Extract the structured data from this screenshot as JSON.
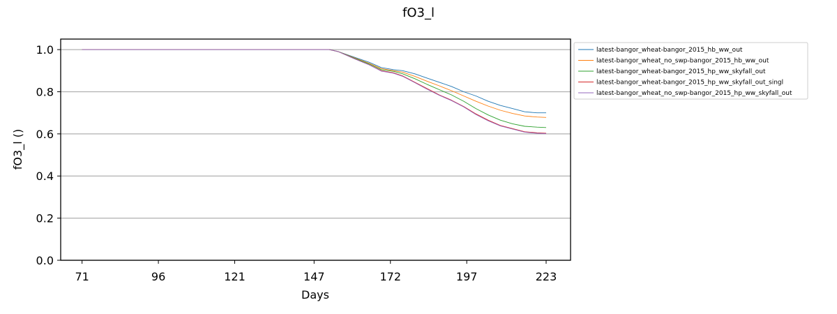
{
  "chart_data": {
    "type": "line",
    "title": "fO3_l",
    "xlabel": "Days",
    "ylabel": "fO3_l ()",
    "xlim": [
      64,
      231
    ],
    "ylim": [
      0.0,
      1.05
    ],
    "xticks": [
      71,
      96,
      121,
      147,
      172,
      197,
      223
    ],
    "yticks": [
      0.0,
      0.2,
      0.4,
      0.6,
      0.8,
      1.0
    ],
    "ytick_labels": [
      "0.0",
      "0.2",
      "0.4",
      "0.6",
      "0.8",
      "1.0"
    ],
    "grid": "horizontal",
    "legend_position": "outside-right-top",
    "series": [
      {
        "name": "latest-bangor_wheat-bangor_2015_hb_ww_out",
        "color": "#1f77b4",
        "x": [
          71,
          152,
          155,
          160,
          165,
          169,
          173,
          176,
          180,
          184,
          188,
          192,
          196,
          200,
          204,
          208,
          212,
          216,
          220,
          223
        ],
        "y": [
          1.0,
          1.0,
          0.99,
          0.965,
          0.94,
          0.915,
          0.905,
          0.9,
          0.885,
          0.865,
          0.845,
          0.825,
          0.8,
          0.78,
          0.755,
          0.735,
          0.72,
          0.705,
          0.7,
          0.7
        ]
      },
      {
        "name": "latest-bangor_wheat_no_swp-bangor_2015_hb_ww_out",
        "color": "#ff7f0e",
        "x": [
          71,
          152,
          155,
          160,
          165,
          169,
          173,
          176,
          180,
          184,
          188,
          192,
          196,
          200,
          204,
          208,
          212,
          216,
          220,
          223
        ],
        "y": [
          1.0,
          1.0,
          0.99,
          0.962,
          0.935,
          0.91,
          0.9,
          0.893,
          0.873,
          0.85,
          0.828,
          0.805,
          0.78,
          0.755,
          0.732,
          0.712,
          0.697,
          0.685,
          0.68,
          0.678
        ]
      },
      {
        "name": "latest-bangor_wheat-bangor_2015_hp_ww_skyfall_out",
        "color": "#2ca02c",
        "x": [
          71,
          152,
          155,
          160,
          165,
          169,
          173,
          176,
          180,
          184,
          188,
          192,
          196,
          200,
          204,
          208,
          212,
          216,
          220,
          223
        ],
        "y": [
          1.0,
          1.0,
          0.99,
          0.96,
          0.932,
          0.905,
          0.897,
          0.885,
          0.862,
          0.835,
          0.81,
          0.785,
          0.755,
          0.72,
          0.69,
          0.665,
          0.648,
          0.636,
          0.632,
          0.63
        ]
      },
      {
        "name": "latest-bangor_wheat-bangor_2015_hp_ww_skyfall_out_singl",
        "color": "#d62728",
        "x": [
          71,
          152,
          155,
          160,
          165,
          169,
          173,
          176,
          180,
          184,
          188,
          192,
          196,
          200,
          204,
          208,
          212,
          216,
          220,
          223
        ],
        "y": [
          1.0,
          1.0,
          0.99,
          0.958,
          0.928,
          0.9,
          0.89,
          0.875,
          0.845,
          0.815,
          0.785,
          0.76,
          0.73,
          0.695,
          0.665,
          0.64,
          0.625,
          0.61,
          0.605,
          0.603
        ]
      },
      {
        "name": "latest-bangor_wheat_no_swp-bangor_2015_hp_ww_skyfall_out",
        "color": "#9467bd",
        "x": [
          71,
          152,
          155,
          160,
          165,
          169,
          173,
          176,
          180,
          184,
          188,
          192,
          196,
          200,
          204,
          208,
          212,
          216,
          220,
          223
        ],
        "y": [
          1.0,
          1.0,
          0.99,
          0.958,
          0.928,
          0.898,
          0.888,
          0.873,
          0.843,
          0.812,
          0.783,
          0.758,
          0.728,
          0.692,
          0.662,
          0.638,
          0.623,
          0.608,
          0.603,
          0.601
        ]
      }
    ]
  }
}
